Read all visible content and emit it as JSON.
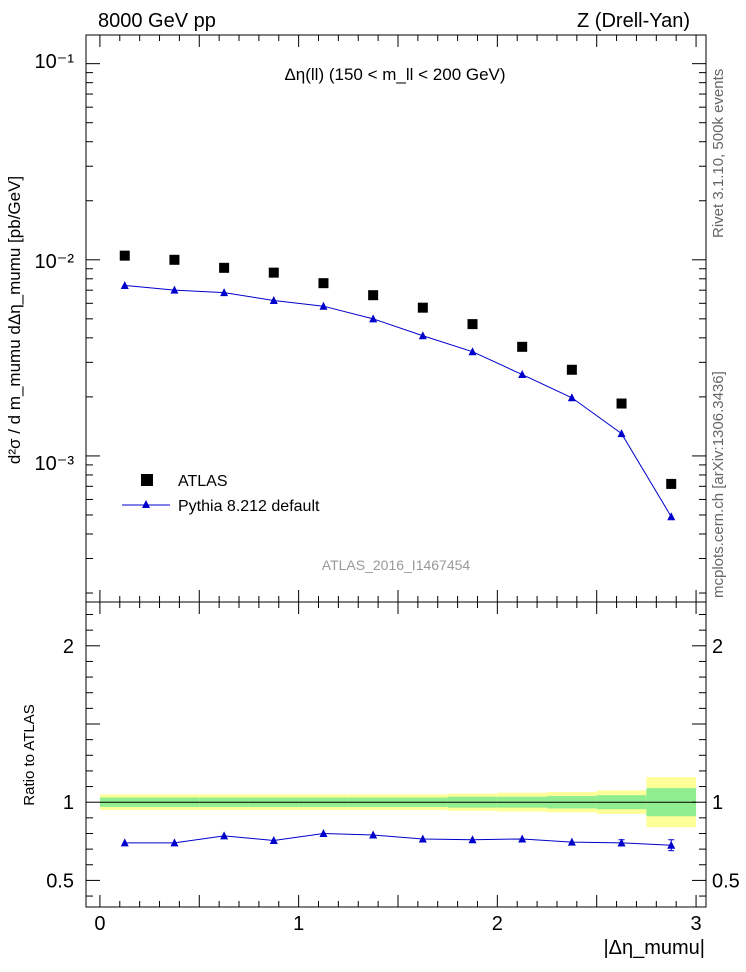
{
  "header": {
    "left": "8000 GeV pp",
    "right": "Z (Drell-Yan)"
  },
  "side_labels": {
    "rivet": "Rivet 3.1.10,  500k events",
    "mcplots": "mcplots.cern.ch [arXiv:1306.3436]"
  },
  "colors": {
    "mc_line": "#0000cc",
    "band_inner": "#90ee90",
    "band_outer": "#ffff99",
    "data_marker": "#000000"
  },
  "chart_data": [
    {
      "type": "scatter",
      "panel": "main",
      "title": "Δη(ll) (150 < m_ll < 200 GeV)",
      "ylabel": "d²σ / d m_mumu dΔη_mumu  [pb/GeV]",
      "xlim": [
        -0.07,
        3.05
      ],
      "ylim": [
        0.00018,
        0.14
      ],
      "yscale": "log",
      "ytick_labels": [
        "10⁻³",
        "10⁻²",
        "10⁻¹"
      ],
      "watermark": "ATLAS_2016_I1467454",
      "legend": {
        "position": "left",
        "entries": [
          "ATLAS",
          "Pythia 8.212 default"
        ]
      },
      "x": [
        0.125,
        0.375,
        0.625,
        0.875,
        1.125,
        1.375,
        1.625,
        1.875,
        2.125,
        2.375,
        2.625,
        2.875
      ],
      "series": [
        {
          "name": "ATLAS",
          "marker": "square",
          "values": [
            0.0105,
            0.01,
            0.0091,
            0.0086,
            0.0076,
            0.0066,
            0.0057,
            0.0047,
            0.0036,
            0.00275,
            0.00185,
            0.00072
          ]
        },
        {
          "name": "Pythia 8.212 default",
          "marker": "triangle",
          "values": [
            0.0074,
            0.007,
            0.0068,
            0.0062,
            0.0058,
            0.005,
            0.0041,
            0.0034,
            0.0026,
            0.00198,
            0.0013,
            0.00049
          ]
        }
      ]
    },
    {
      "type": "line",
      "panel": "ratio",
      "ylabel": "Ratio to ATLAS",
      "xlabel": "|Δη_mumu|",
      "xlim": [
        -0.07,
        3.05
      ],
      "ylim": [
        0.33,
        2.28
      ],
      "xticks": [
        0,
        1,
        2,
        3
      ],
      "yticks": [
        0.5,
        1,
        2
      ],
      "x": [
        0.125,
        0.375,
        0.625,
        0.875,
        1.125,
        1.375,
        1.625,
        1.875,
        2.125,
        2.375,
        2.625,
        2.875
      ],
      "values": [
        0.74,
        0.74,
        0.785,
        0.755,
        0.8,
        0.79,
        0.765,
        0.76,
        0.765,
        0.745,
        0.74,
        0.725
      ],
      "errors": [
        0.008,
        0.008,
        0.01,
        0.01,
        0.01,
        0.01,
        0.01,
        0.01,
        0.012,
        0.014,
        0.02,
        0.035
      ],
      "band_edges": [
        0,
        0.25,
        0.5,
        0.75,
        1.0,
        1.25,
        1.5,
        1.75,
        2.0,
        2.25,
        2.5,
        2.75,
        3.0
      ],
      "band_inner_halfwidth": [
        0.03,
        0.03,
        0.03,
        0.03,
        0.03,
        0.03,
        0.03,
        0.035,
        0.035,
        0.04,
        0.045,
        0.09
      ],
      "band_outer_halfwidth": [
        0.05,
        0.05,
        0.05,
        0.05,
        0.05,
        0.05,
        0.05,
        0.055,
        0.06,
        0.065,
        0.075,
        0.16
      ]
    }
  ]
}
